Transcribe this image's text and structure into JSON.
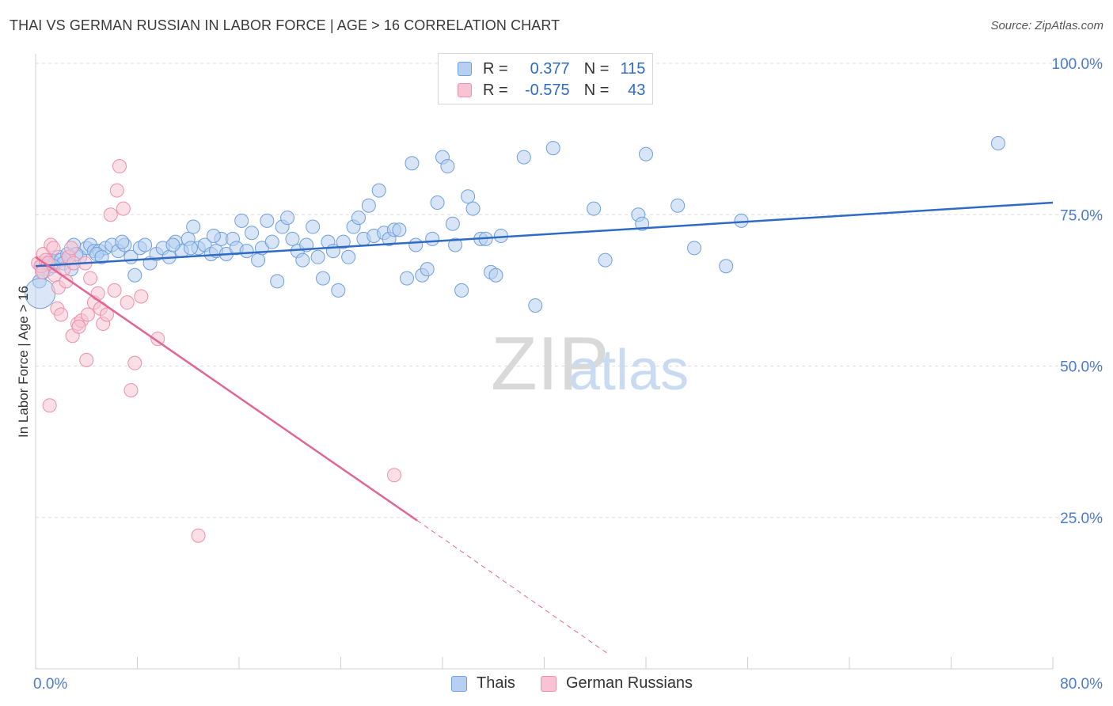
{
  "title": "THAI VS GERMAN RUSSIAN IN LABOR FORCE | AGE > 16 CORRELATION CHART",
  "source": "Source: ZipAtlas.com",
  "watermark": {
    "part1": "ZIP",
    "part2": "atlas"
  },
  "legend": {
    "r_label": "R =",
    "n_label": "N =",
    "rows": [
      {
        "r": "0.377",
        "n": "115",
        "color": "#b7cff0"
      },
      {
        "r": "-0.575",
        "n": "43",
        "color": "#f8c4d4"
      }
    ]
  },
  "bottom_legend": [
    "Thais",
    "German Russians"
  ],
  "chart_data": {
    "type": "scatter",
    "title": "THAI VS GERMAN RUSSIAN IN LABOR FORCE | AGE > 16 CORRELATION CHART",
    "xlabel": "",
    "ylabel": "In Labor Force | Age > 16",
    "xlim": [
      0,
      80
    ],
    "ylim": [
      0,
      100
    ],
    "x_tick_labels": [
      "0.0%",
      "80.0%"
    ],
    "y_tick_labels": [
      "100.0%",
      "75.0%",
      "50.0%",
      "25.0%"
    ],
    "y_ticks": [
      100,
      75,
      50,
      25
    ],
    "grid": true,
    "legend_position": "top-center",
    "colors": {
      "thais": "#6f9fdc",
      "thais_fill": "#b7cff0",
      "thais_line": "#2f6bc5",
      "german": "#ee8fac",
      "german_fill": "#f8c4d4",
      "german_line": "#e06695",
      "axis_text": "#4a7bd0"
    },
    "series": [
      {
        "name": "Thais",
        "trend": {
          "x0": 0,
          "y0": 66.5,
          "x1": 80,
          "y1": 77.0
        },
        "points": [
          [
            0.5,
            66.5
          ],
          [
            0.8,
            67.0
          ],
          [
            1.0,
            66.0
          ],
          [
            1.2,
            67.5
          ],
          [
            1.5,
            67.0
          ],
          [
            1.8,
            68.0
          ],
          [
            2.0,
            67.5
          ],
          [
            2.2,
            67.0
          ],
          [
            2.5,
            68.5
          ],
          [
            2.8,
            66.0
          ],
          [
            3.0,
            70.0
          ],
          [
            3.5,
            68.0
          ],
          [
            4.0,
            69.5
          ],
          [
            4.3,
            70.0
          ],
          [
            4.6,
            69.0
          ],
          [
            5.0,
            69.0
          ],
          [
            5.5,
            69.5
          ],
          [
            6.0,
            70.0
          ],
          [
            6.5,
            69.0
          ],
          [
            7.0,
            70.0
          ],
          [
            7.5,
            68.0
          ],
          [
            7.8,
            65.0
          ],
          [
            8.2,
            69.5
          ],
          [
            9.0,
            67.0
          ],
          [
            9.5,
            68.5
          ],
          [
            10.0,
            69.5
          ],
          [
            10.5,
            68.0
          ],
          [
            11.0,
            70.5
          ],
          [
            11.5,
            69.0
          ],
          [
            12.0,
            71.0
          ],
          [
            12.4,
            73.0
          ],
          [
            12.8,
            69.5
          ],
          [
            13.3,
            70.0
          ],
          [
            13.8,
            68.5
          ],
          [
            14.2,
            69.0
          ],
          [
            14.6,
            71.0
          ],
          [
            15.0,
            68.5
          ],
          [
            15.5,
            71.0
          ],
          [
            15.8,
            69.5
          ],
          [
            16.2,
            74.0
          ],
          [
            16.6,
            69.0
          ],
          [
            17.0,
            72.0
          ],
          [
            17.5,
            67.5
          ],
          [
            17.8,
            69.5
          ],
          [
            18.2,
            74.0
          ],
          [
            18.6,
            70.5
          ],
          [
            19.0,
            64.0
          ],
          [
            19.4,
            73.0
          ],
          [
            19.8,
            74.5
          ],
          [
            20.2,
            71.0
          ],
          [
            20.6,
            69.0
          ],
          [
            21.0,
            67.5
          ],
          [
            21.3,
            70.0
          ],
          [
            21.8,
            73.0
          ],
          [
            22.2,
            68.0
          ],
          [
            22.6,
            64.5
          ],
          [
            23.0,
            70.5
          ],
          [
            23.4,
            69.0
          ],
          [
            23.8,
            62.5
          ],
          [
            24.2,
            70.5
          ],
          [
            24.6,
            68.0
          ],
          [
            25.0,
            73.0
          ],
          [
            25.4,
            74.5
          ],
          [
            25.8,
            71.0
          ],
          [
            26.2,
            76.5
          ],
          [
            26.6,
            71.5
          ],
          [
            27.0,
            79.0
          ],
          [
            27.4,
            72.0
          ],
          [
            27.8,
            71.0
          ],
          [
            28.2,
            72.5
          ],
          [
            28.6,
            72.5
          ],
          [
            29.2,
            64.5
          ],
          [
            29.6,
            83.5
          ],
          [
            29.9,
            70.0
          ],
          [
            30.4,
            65.0
          ],
          [
            30.8,
            66.0
          ],
          [
            31.2,
            71.0
          ],
          [
            31.6,
            77.0
          ],
          [
            32.0,
            84.5
          ],
          [
            32.4,
            83.0
          ],
          [
            32.8,
            73.5
          ],
          [
            33.0,
            70.0
          ],
          [
            33.5,
            62.5
          ],
          [
            34.0,
            78.0
          ],
          [
            34.4,
            76.0
          ],
          [
            35.0,
            71.0
          ],
          [
            35.4,
            71.0
          ],
          [
            35.8,
            65.5
          ],
          [
            36.2,
            65.0
          ],
          [
            36.6,
            71.5
          ],
          [
            38.4,
            84.5
          ],
          [
            39.3,
            60.0
          ],
          [
            40.7,
            86.0
          ],
          [
            43.9,
            76.0
          ],
          [
            44.8,
            67.5
          ],
          [
            47.4,
            75.0
          ],
          [
            47.7,
            73.5
          ],
          [
            48.0,
            85.0
          ],
          [
            50.5,
            76.5
          ],
          [
            51.8,
            69.5
          ],
          [
            54.3,
            66.5
          ],
          [
            55.5,
            74.0
          ],
          [
            75.7,
            86.8
          ],
          [
            0.3,
            64.0
          ],
          [
            0.6,
            65.5
          ],
          [
            1.4,
            66.5
          ],
          [
            2.6,
            68.0
          ],
          [
            3.2,
            68.5
          ],
          [
            4.8,
            68.5
          ],
          [
            5.2,
            68.0
          ],
          [
            6.8,
            70.5
          ],
          [
            8.6,
            70.0
          ],
          [
            10.8,
            70.0
          ],
          [
            12.2,
            69.5
          ],
          [
            14.0,
            71.5
          ]
        ]
      },
      {
        "name": "German Russians",
        "trend": {
          "x0": 0,
          "y0": 68.0,
          "x1": 30,
          "y1": 24.5,
          "dash_x1": 45,
          "dash_y1": 2.5
        },
        "points": [
          [
            0.2,
            67.0
          ],
          [
            0.4,
            66.5
          ],
          [
            0.6,
            68.5
          ],
          [
            0.8,
            67.5
          ],
          [
            1.0,
            67.0
          ],
          [
            1.2,
            70.0
          ],
          [
            1.4,
            69.5
          ],
          [
            1.5,
            65.0
          ],
          [
            1.7,
            59.5
          ],
          [
            1.8,
            63.0
          ],
          [
            2.0,
            58.5
          ],
          [
            2.2,
            66.0
          ],
          [
            2.4,
            64.0
          ],
          [
            2.6,
            68.0
          ],
          [
            2.8,
            69.5
          ],
          [
            3.0,
            67.0
          ],
          [
            3.3,
            57.0
          ],
          [
            3.6,
            57.5
          ],
          [
            3.9,
            67.0
          ],
          [
            4.1,
            58.5
          ],
          [
            4.3,
            64.5
          ],
          [
            4.6,
            60.5
          ],
          [
            4.9,
            62.0
          ],
          [
            5.1,
            59.5
          ],
          [
            5.3,
            57.0
          ],
          [
            5.6,
            58.5
          ],
          [
            5.9,
            75.0
          ],
          [
            6.2,
            62.5
          ],
          [
            6.4,
            79.0
          ],
          [
            6.6,
            83.0
          ],
          [
            6.9,
            76.0
          ],
          [
            7.2,
            60.5
          ],
          [
            7.5,
            46.0
          ],
          [
            8.3,
            61.5
          ],
          [
            9.6,
            54.5
          ],
          [
            12.8,
            22.0
          ],
          [
            28.2,
            32.0
          ],
          [
            1.1,
            43.5
          ],
          [
            2.9,
            55.0
          ],
          [
            3.4,
            56.5
          ],
          [
            4.0,
            51.0
          ],
          [
            7.8,
            50.5
          ],
          [
            0.5,
            65.5
          ]
        ]
      }
    ]
  }
}
